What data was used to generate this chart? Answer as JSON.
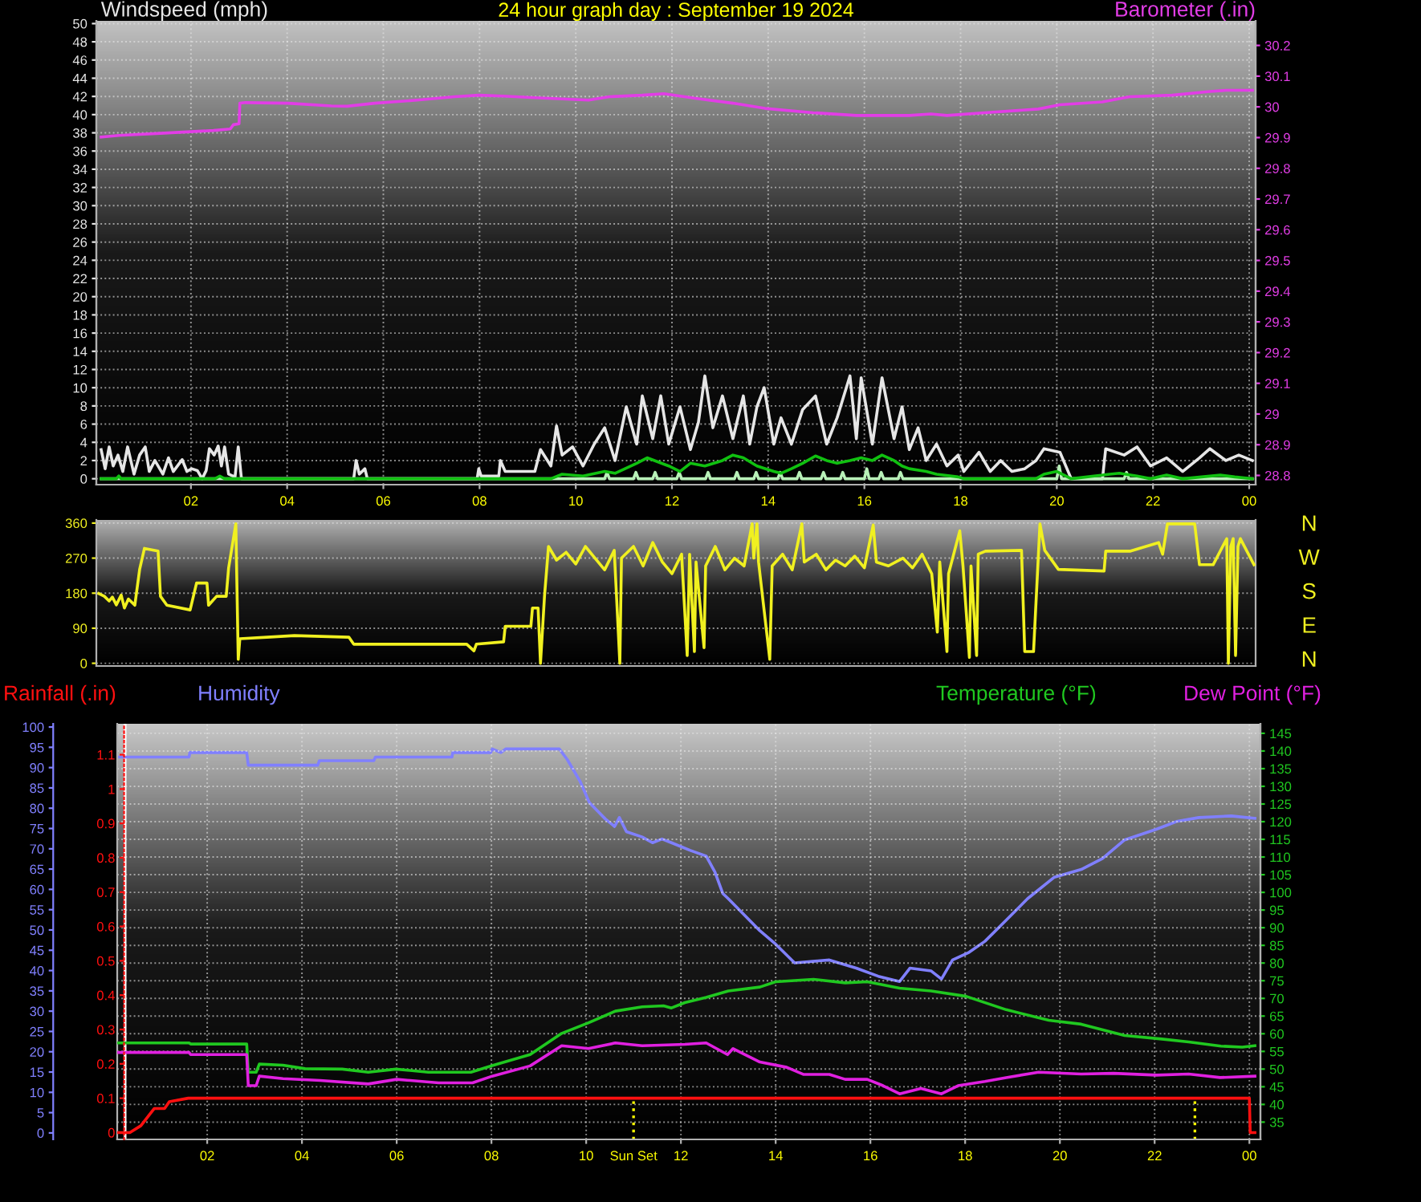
{
  "chart_data": [
    {
      "type": "line",
      "title": "24 hour graph day : September 19 2024",
      "ylabel": "Windspeed (mph)",
      "y2label": "Barometer (.in)",
      "xlim": [
        "2024-09-19T00:02",
        "2024-09-20T00:08"
      ],
      "xticks": [
        {
          "value": "2024-09-19T02:00",
          "label": "02"
        },
        {
          "value": "2024-09-19T04:00",
          "label": "04"
        },
        {
          "value": "2024-09-19T06:00",
          "label": "06"
        },
        {
          "value": "2024-09-19T08:00",
          "label": "08"
        },
        {
          "value": "2024-09-19T10:00",
          "label": "10"
        },
        {
          "value": "2024-09-19T12:00",
          "label": "12"
        },
        {
          "value": "2024-09-19T14:00",
          "label": "14"
        },
        {
          "value": "2024-09-19T16:00",
          "label": "16"
        },
        {
          "value": "2024-09-19T18:00",
          "label": "18"
        },
        {
          "value": "2024-09-19T20:00",
          "label": "20"
        },
        {
          "value": "2024-09-19T22:00",
          "label": "22"
        },
        {
          "value": "2024-09-20T00:00",
          "label": "00"
        }
      ],
      "ylim": [
        -0.65,
        50.3
      ],
      "yticks": [
        0,
        2,
        4,
        6,
        8,
        10,
        12,
        14,
        16,
        18,
        20,
        22,
        24,
        26,
        28,
        30,
        32,
        34,
        36,
        38,
        40,
        42,
        44,
        46,
        48,
        50
      ],
      "y2lim": [
        28.77,
        30.28
      ],
      "y2ticks": [
        28.8,
        28.9,
        29,
        29.1,
        29.2,
        29.3,
        29.4,
        29.5,
        29.6,
        29.7,
        29.8,
        29.9,
        30,
        30.1,
        30.2
      ],
      "grid": true,
      "series": [
        {
          "color": "#e6e6e6",
          "x": [
            "2024-09-19T00:08",
            "2024-09-19T00:13",
            "2024-09-19T00:18",
            "2024-09-19T00:23",
            "2024-09-19T00:29",
            "2024-09-19T00:35",
            "2024-09-19T00:41",
            "2024-09-19T00:49",
            "2024-09-19T00:56",
            "2024-09-19T01:03",
            "2024-09-19T01:08",
            "2024-09-19T01:15",
            "2024-09-19T01:25",
            "2024-09-19T01:32",
            "2024-09-19T01:38",
            "2024-09-19T01:49",
            "2024-09-19T01:55",
            "2024-09-19T02:01",
            "2024-09-19T02:08",
            "2024-09-19T02:14",
            "2024-09-19T02:19",
            "2024-09-19T02:23",
            "2024-09-19T02:29",
            "2024-09-19T02:34",
            "2024-09-19T02:38",
            "2024-09-19T02:42",
            "2024-09-19T02:47",
            "2024-09-19T02:55",
            "2024-09-19T02:59",
            "2024-09-19T03:03",
            "2024-09-19T05:23",
            "2024-09-19T05:26",
            "2024-09-19T05:30",
            "2024-09-19T05:37",
            "2024-09-19T05:40",
            "2024-09-19T07:57",
            "2024-09-19T07:59",
            "2024-09-19T08:02",
            "2024-09-19T08:24",
            "2024-09-19T08:26",
            "2024-09-19T08:32",
            "2024-09-19T09:09",
            "2024-09-19T09:16",
            "2024-09-19T09:29",
            "2024-09-19T09:36",
            "2024-09-19T09:43",
            "2024-09-19T09:56",
            "2024-09-19T10:09",
            "2024-09-19T10:23",
            "2024-09-19T10:36",
            "2024-09-19T10:49",
            "2024-09-19T11:03",
            "2024-09-19T11:16",
            "2024-09-19T11:23",
            "2024-09-19T11:36",
            "2024-09-19T11:46",
            "2024-09-19T11:56",
            "2024-09-19T12:10",
            "2024-09-19T12:23",
            "2024-09-19T12:33",
            "2024-09-19T12:41",
            "2024-09-19T12:51",
            "2024-09-19T13:03",
            "2024-09-19T13:16",
            "2024-09-19T13:29",
            "2024-09-19T13:37",
            "2024-09-19T13:46",
            "2024-09-19T13:55",
            "2024-09-19T14:07",
            "2024-09-19T14:16",
            "2024-09-19T14:29",
            "2024-09-19T14:43",
            "2024-09-19T14:59",
            "2024-09-19T15:13",
            "2024-09-19T15:26",
            "2024-09-19T15:42",
            "2024-09-19T15:50",
            "2024-09-19T15:56",
            "2024-09-19T16:10",
            "2024-09-19T16:22",
            "2024-09-19T16:37",
            "2024-09-19T16:47",
            "2024-09-19T16:56",
            "2024-09-19T17:07",
            "2024-09-19T17:17",
            "2024-09-19T17:30",
            "2024-09-19T17:43",
            "2024-09-19T17:57",
            "2024-09-19T18:04",
            "2024-09-19T18:23",
            "2024-09-19T18:37",
            "2024-09-19T18:50",
            "2024-09-19T19:04",
            "2024-09-19T19:20",
            "2024-09-19T19:34",
            "2024-09-19T19:44",
            "2024-09-19T20:04",
            "2024-09-19T20:18",
            "2024-09-19T20:57",
            "2024-09-19T21:01",
            "2024-09-19T21:24",
            "2024-09-19T21:40",
            "2024-09-19T21:57",
            "2024-09-19T22:17",
            "2024-09-19T22:37",
            "2024-09-19T22:58",
            "2024-09-19T23:11",
            "2024-09-19T23:31",
            "2024-09-19T23:47",
            "2024-09-20T00:04"
          ],
          "values": [
            3.2,
            1.1,
            3.5,
            1.4,
            2.6,
            0.8,
            3.5,
            0.5,
            2.6,
            3.5,
            0.8,
            2.0,
            0.5,
            2.3,
            0.8,
            2.1,
            0.8,
            1.1,
            0.9,
            0,
            0.9,
            3.3,
            2.6,
            3.6,
            1.4,
            3.5,
            0.5,
            0.2,
            3.5,
            0,
            0,
            2.0,
            0.5,
            1.1,
            0,
            0,
            1.1,
            0.3,
            0.3,
            2.0,
            0.8,
            0.8,
            3.2,
            1.4,
            5.8,
            2.6,
            3.5,
            1.4,
            3.8,
            5.6,
            2.0,
            7.9,
            3.8,
            9.1,
            4.4,
            9.1,
            3.8,
            7.9,
            3.2,
            6.2,
            11.3,
            5.6,
            9.1,
            4.4,
            9.1,
            3.8,
            7.9,
            10.0,
            3.8,
            6.7,
            3.8,
            7.6,
            9.1,
            3.8,
            6.7,
            11.3,
            4.4,
            11.1,
            3.8,
            11.1,
            4.4,
            7.9,
            3.2,
            5.6,
            2.0,
            3.8,
            1.4,
            2.6,
            0.8,
            2.9,
            0.8,
            2.0,
            0.8,
            1.1,
            2.0,
            3.3,
            2.9,
            0,
            0,
            3.3,
            2.6,
            3.5,
            1.4,
            2.3,
            0.8,
            2.3,
            3.3,
            2.0,
            2.6,
            2.0
          ]
        },
        {
          "color": "#b8f0b8",
          "x": [
            "2024-09-19T00:08",
            "2024-09-19T10:36",
            "2024-09-19T10:39",
            "2024-09-19T10:42",
            "2024-09-19T11:12",
            "2024-09-19T11:15",
            "2024-09-19T11:18",
            "2024-09-19T11:36",
            "2024-09-19T11:39",
            "2024-09-19T11:42",
            "2024-09-19T12:06",
            "2024-09-19T12:09",
            "2024-09-19T12:12",
            "2024-09-19T12:42",
            "2024-09-19T12:45",
            "2024-09-19T12:48",
            "2024-09-19T13:18",
            "2024-09-19T13:21",
            "2024-09-19T13:24",
            "2024-09-19T13:42",
            "2024-09-19T13:45",
            "2024-09-19T13:48",
            "2024-09-19T14:12",
            "2024-09-19T14:15",
            "2024-09-19T14:18",
            "2024-09-19T14:36",
            "2024-09-19T14:39",
            "2024-09-19T14:42",
            "2024-09-19T15:06",
            "2024-09-19T15:09",
            "2024-09-19T15:12",
            "2024-09-19T15:30",
            "2024-09-19T15:33",
            "2024-09-19T15:36",
            "2024-09-19T16:00",
            "2024-09-19T16:03",
            "2024-09-19T16:06",
            "2024-09-19T16:18",
            "2024-09-19T16:21",
            "2024-09-19T16:24",
            "2024-09-19T16:42",
            "2024-09-19T16:45",
            "2024-09-19T16:48",
            "2024-09-19T20:00",
            "2024-09-19T20:03",
            "2024-09-19T20:06",
            "2024-09-19T21:24",
            "2024-09-19T21:27",
            "2024-09-19T21:30",
            "2024-09-20T00:04"
          ],
          "values": [
            0,
            0,
            0.7,
            0,
            0,
            0.7,
            0,
            0,
            0.7,
            0,
            0,
            0.7,
            0,
            0,
            0.7,
            0,
            0,
            0.7,
            0,
            0,
            0.7,
            0,
            0,
            0.7,
            0,
            0,
            0.7,
            0,
            0,
            0.7,
            0,
            0,
            0.7,
            0,
            0,
            1.1,
            0,
            0,
            0.7,
            0,
            0,
            0.7,
            0,
            0,
            1.4,
            0,
            0,
            0.7,
            0,
            0
          ]
        },
        {
          "color": "#10c010",
          "x": [
            "2024-09-19T00:08",
            "2024-09-19T00:27",
            "2024-09-19T00:30",
            "2024-09-19T00:33",
            "2024-09-19T02:30",
            "2024-09-19T02:36",
            "2024-09-19T02:42",
            "2024-09-19T09:29",
            "2024-09-19T09:43",
            "2024-09-19T10:09",
            "2024-09-19T10:36",
            "2024-09-19T10:49",
            "2024-09-19T11:16",
            "2024-09-19T11:29",
            "2024-09-19T11:56",
            "2024-09-19T12:10",
            "2024-09-19T12:23",
            "2024-09-19T12:41",
            "2024-09-19T13:03",
            "2024-09-19T13:16",
            "2024-09-19T13:29",
            "2024-09-19T13:46",
            "2024-09-19T14:07",
            "2024-09-19T14:16",
            "2024-09-19T14:29",
            "2024-09-19T14:43",
            "2024-09-19T14:59",
            "2024-09-19T15:13",
            "2024-09-19T15:26",
            "2024-09-19T15:42",
            "2024-09-19T15:56",
            "2024-09-19T16:10",
            "2024-09-19T16:22",
            "2024-09-19T16:37",
            "2024-09-19T16:47",
            "2024-09-19T16:56",
            "2024-09-19T17:17",
            "2024-09-19T17:30",
            "2024-09-19T17:57",
            "2024-09-19T18:04",
            "2024-09-19T19:34",
            "2024-09-19T19:44",
            "2024-09-19T20:00",
            "2024-09-19T20:18",
            "2024-09-19T21:06",
            "2024-09-19T21:18",
            "2024-09-19T21:40",
            "2024-09-19T21:57",
            "2024-09-19T22:17",
            "2024-09-19T22:37",
            "2024-09-19T23:24",
            "2024-09-19T23:42",
            "2024-09-20T00:04"
          ],
          "values": [
            0,
            0,
            0.3,
            0,
            0,
            0.3,
            0,
            0,
            0.5,
            0.3,
            0.8,
            0.6,
            1.7,
            2.3,
            1.4,
            0.8,
            1.7,
            1.4,
            2.0,
            2.6,
            2.3,
            1.4,
            0.8,
            0.6,
            1.1,
            1.7,
            2.5,
            2.0,
            1.7,
            2.0,
            2.3,
            2.0,
            2.6,
            2.0,
            1.4,
            1.1,
            0.8,
            0.5,
            0.2,
            0,
            0,
            0.5,
            0.8,
            0,
            0.5,
            0.6,
            0.3,
            0,
            0.4,
            0,
            0.4,
            0.2,
            0
          ]
        },
        {
          "color": "#e23de6",
          "axis": "y2",
          "x": [
            "2024-09-19T00:08",
            "2024-09-19T00:30",
            "2024-09-19T01:22",
            "2024-09-19T02:28",
            "2024-09-19T02:49",
            "2024-09-19T02:53",
            "2024-09-19T03:00",
            "2024-09-19T03:01",
            "2024-09-19T03:08",
            "2024-09-19T04:01",
            "2024-09-19T04:55",
            "2024-09-19T05:15",
            "2024-09-19T05:49",
            "2024-09-19T06:42",
            "2024-09-19T07:29",
            "2024-09-19T07:59",
            "2024-09-19T08:30",
            "2024-09-19T09:09",
            "2024-09-19T10:16",
            "2024-09-19T10:42",
            "2024-09-19T11:23",
            "2024-09-19T11:50",
            "2024-09-19T12:29",
            "2024-09-19T13:16",
            "2024-09-19T13:56",
            "2024-09-19T14:56",
            "2024-09-19T15:50",
            "2024-09-19T16:56",
            "2024-09-19T17:23",
            "2024-09-19T17:43",
            "2024-09-19T18:30",
            "2024-09-19T19:37",
            "2024-09-19T20:04",
            "2024-09-19T20:57",
            "2024-09-19T21:31",
            "2024-09-19T22:24",
            "2024-09-19T23:11",
            "2024-09-19T23:31",
            "2024-09-20T00:04"
          ],
          "values": [
            29.902,
            29.907,
            29.914,
            29.923,
            29.928,
            29.942,
            29.945,
            30.012,
            30.014,
            30.012,
            30.003,
            30.002,
            30.012,
            30.022,
            30.033,
            30.038,
            30.035,
            30.03,
            30.022,
            30.033,
            30.038,
            30.043,
            30.028,
            30.012,
            29.995,
            29.981,
            29.972,
            29.972,
            29.977,
            29.972,
            29.981,
            29.993,
            30.007,
            30.016,
            30.033,
            30.038,
            30.05,
            30.054,
            30.054
          ]
        }
      ]
    },
    {
      "type": "line",
      "xlim": [
        "2024-09-19T00:02",
        "2024-09-20T00:08"
      ],
      "ylim": [
        -7,
        368
      ],
      "yticks": [
        0,
        90,
        180,
        270,
        360
      ],
      "tick_labels": "y",
      "grid": "y",
      "annotations": [
        "N",
        "W",
        "S",
        "E",
        "N"
      ],
      "series": [
        {
          "color": "#f0f020",
          "x": [
            "2024-09-19T00:05",
            "2024-09-19T00:12",
            "2024-09-19T00:18",
            "2024-09-19T00:22",
            "2024-09-19T00:27",
            "2024-09-19T00:33",
            "2024-09-19T00:37",
            "2024-09-19T00:42",
            "2024-09-19T00:50",
            "2024-09-19T00:56",
            "2024-09-19T01:02",
            "2024-09-19T01:19",
            "2024-09-19T01:22",
            "2024-09-19T01:30",
            "2024-09-19T01:59",
            "2024-09-19T02:07",
            "2024-09-19T02:20",
            "2024-09-19T02:22",
            "2024-09-19T02:32",
            "2024-09-19T02:44",
            "2024-09-19T02:47",
            "2024-09-19T02:56",
            "2024-09-19T02:59",
            "2024-09-19T03:01",
            "2024-09-19T03:35",
            "2024-09-19T04:09",
            "2024-09-19T05:17",
            "2024-09-19T05:23",
            "2024-09-19T07:44",
            "2024-09-19T07:53",
            "2024-09-19T07:56",
            "2024-09-19T08:30",
            "2024-09-19T08:32",
            "2024-09-19T09:04",
            "2024-09-19T09:06",
            "2024-09-19T09:13",
            "2024-09-19T09:16",
            "2024-09-19T09:21",
            "2024-09-19T09:26",
            "2024-09-19T09:36",
            "2024-09-19T09:48",
            "2024-09-19T10:00",
            "2024-09-19T10:12",
            "2024-09-19T10:24",
            "2024-09-19T10:36",
            "2024-09-19T10:48",
            "2024-09-19T10:55",
            "2024-09-19T10:57",
            "2024-09-19T11:12",
            "2024-09-19T11:24",
            "2024-09-19T11:36",
            "2024-09-19T11:48",
            "2024-09-19T12:00",
            "2024-09-19T12:12",
            "2024-09-19T12:19",
            "2024-09-19T12:22",
            "2024-09-19T12:28",
            "2024-09-19T12:30",
            "2024-09-19T12:40",
            "2024-09-19T12:42",
            "2024-09-19T12:54",
            "2024-09-19T13:06",
            "2024-09-19T13:18",
            "2024-09-19T13:30",
            "2024-09-19T13:40",
            "2024-09-19T13:42",
            "2024-09-19T13:46",
            "2024-09-19T13:48",
            "2024-09-19T14:02",
            "2024-09-19T14:05",
            "2024-09-19T14:18",
            "2024-09-19T14:30",
            "2024-09-19T14:42",
            "2024-09-19T14:45",
            "2024-09-19T15:00",
            "2024-09-19T15:12",
            "2024-09-19T15:24",
            "2024-09-19T15:36",
            "2024-09-19T15:48",
            "2024-09-19T16:00",
            "2024-09-19T16:11",
            "2024-09-19T16:15",
            "2024-09-19T16:30",
            "2024-09-19T16:48",
            "2024-09-19T17:00",
            "2024-09-19T17:12",
            "2024-09-19T17:24",
            "2024-09-19T17:31",
            "2024-09-19T17:34",
            "2024-09-19T17:43",
            "2024-09-19T17:45",
            "2024-09-19T17:59",
            "2024-09-19T18:03",
            "2024-09-19T18:11",
            "2024-09-19T18:13",
            "2024-09-19T18:20",
            "2024-09-19T18:22",
            "2024-09-19T18:31",
            "2024-09-19T19:16",
            "2024-09-19T19:20",
            "2024-09-19T19:31",
            "2024-09-19T19:39",
            "2024-09-19T19:45",
            "2024-09-19T20:02",
            "2024-09-19T20:59",
            "2024-09-19T21:01",
            "2024-09-19T21:32",
            "2024-09-19T22:07",
            "2024-09-19T22:12",
            "2024-09-19T22:18",
            "2024-09-19T22:52",
            "2024-09-19T22:58",
            "2024-09-19T23:15",
            "2024-09-19T23:32",
            "2024-09-19T23:34",
            "2024-09-19T23:37",
            "2024-09-19T23:40",
            "2024-09-19T23:43",
            "2024-09-19T23:46",
            "2024-09-19T23:49",
            "2024-09-20T00:06"
          ],
          "values": [
            179,
            172,
            160,
            170,
            150,
            175,
            142,
            165,
            149,
            241,
            295,
            288,
            172,
            149,
            137,
            206,
            206,
            149,
            172,
            172,
            245,
            358,
            10,
            63,
            67,
            71,
            67,
            49,
            49,
            32,
            49,
            55,
            95,
            95,
            142,
            142,
            0,
            172,
            300,
            265,
            285,
            255,
            300,
            270,
            240,
            290,
            0,
            270,
            300,
            250,
            310,
            260,
            230,
            280,
            20,
            280,
            30,
            260,
            40,
            250,
            300,
            240,
            270,
            250,
            358,
            270,
            358,
            260,
            10,
            250,
            280,
            240,
            358,
            260,
            280,
            240,
            265,
            250,
            275,
            245,
            355,
            260,
            250,
            270,
            245,
            280,
            230,
            80,
            260,
            30,
            230,
            340,
            250,
            15,
            250,
            20,
            280,
            288,
            290,
            30,
            30,
            358,
            290,
            241,
            237,
            288,
            288,
            310,
            280,
            358,
            358,
            253,
            253,
            320,
            0,
            300,
            320,
            20,
            300,
            320,
            253
          ]
        }
      ]
    },
    {
      "type": "line",
      "xlim": [
        "2024-09-19T00:06",
        "2024-09-20T00:14"
      ],
      "xticks": [
        {
          "value": "2024-09-19T02:00",
          "label": "02"
        },
        {
          "value": "2024-09-19T04:00",
          "label": "04"
        },
        {
          "value": "2024-09-19T06:00",
          "label": "06"
        },
        {
          "value": "2024-09-19T08:00",
          "label": "08"
        },
        {
          "value": "2024-09-19T10:00",
          "label": "10"
        },
        {
          "value": "2024-09-19T12:00",
          "label": "12"
        },
        {
          "value": "2024-09-19T14:00",
          "label": "14"
        },
        {
          "value": "2024-09-19T16:00",
          "label": "16"
        },
        {
          "value": "2024-09-19T18:00",
          "label": "18"
        },
        {
          "value": "2024-09-19T20:00",
          "label": "20"
        },
        {
          "value": "2024-09-19T22:00",
          "label": "22"
        },
        {
          "value": "2024-09-20T00:00",
          "label": "00"
        }
      ],
      "ylim": [
        -1.6,
        100.8
      ],
      "yticks": [
        0,
        5,
        10,
        15,
        20,
        25,
        30,
        35,
        40,
        45,
        50,
        55,
        60,
        65,
        70,
        75,
        80,
        85,
        90,
        95,
        100
      ],
      "y2lim": [
        30.1,
        147.7
      ],
      "y2ticks": [
        35,
        40,
        45,
        50,
        55,
        60,
        65,
        70,
        75,
        80,
        85,
        90,
        95,
        100,
        105,
        110,
        115,
        120,
        125,
        130,
        135,
        140,
        145
      ],
      "y3lim": [
        -0.02,
        1.19
      ],
      "y3ticks": [
        0,
        0.1,
        0.2,
        0.3,
        0.4,
        0.5,
        0.6,
        0.7,
        0.8,
        0.9,
        1,
        1.1
      ],
      "grid": true,
      "legend": "top",
      "ref_lines": [
        {
          "axis": "x",
          "value": "2024-09-19T00:16",
          "color": "#ffffff",
          "line_style": "solid"
        },
        {
          "axis": "x",
          "value": "2024-09-19T11:00",
          "label": "Sun Set",
          "color": "#ffff00",
          "line_style": "dotted"
        },
        {
          "axis": "x",
          "value": "2024-09-19T22:51",
          "color": "#ffff00",
          "line_style": "dotted"
        }
      ],
      "series": [
        {
          "name": "Rainfall (.in)",
          "color": "#ff1010",
          "axis": "y3",
          "x": [
            "2024-09-19T00:07",
            "2024-09-19T00:22",
            "2024-09-19T00:36",
            "2024-09-19T00:53",
            "2024-09-19T01:06",
            "2024-09-19T01:12",
            "2024-09-19T01:36",
            "2024-09-20T00:00",
            "2024-09-20T00:01",
            "2024-09-20T00:07"
          ],
          "values": [
            0,
            0,
            0.02,
            0.07,
            0.07,
            0.09,
            0.1,
            0.1,
            0,
            0
          ]
        },
        {
          "name": "Humidity",
          "color": "#8080ff",
          "x": [
            "2024-09-19T00:07",
            "2024-09-19T01:37",
            "2024-09-19T01:38",
            "2024-09-19T02:50",
            "2024-09-19T02:52",
            "2024-09-19T04:20",
            "2024-09-19T04:22",
            "2024-09-19T05:31",
            "2024-09-19T05:33",
            "2024-09-19T07:10",
            "2024-09-19T07:11",
            "2024-09-19T07:59",
            "2024-09-19T08:01",
            "2024-09-19T08:12",
            "2024-09-19T08:18",
            "2024-09-19T09:26",
            "2024-09-19T09:36",
            "2024-09-19T09:52",
            "2024-09-19T10:04",
            "2024-09-19T10:24",
            "2024-09-19T10:36",
            "2024-09-19T10:42",
            "2024-09-19T10:51",
            "2024-09-19T11:11",
            "2024-09-19T11:24",
            "2024-09-19T11:36",
            "2024-09-19T11:48",
            "2024-09-19T12:12",
            "2024-09-19T12:32",
            "2024-09-19T12:43",
            "2024-09-19T12:53",
            "2024-09-19T13:00",
            "2024-09-19T13:40",
            "2024-09-19T14:00",
            "2024-09-19T14:24",
            "2024-09-19T15:08",
            "2024-09-19T15:42",
            "2024-09-19T16:10",
            "2024-09-19T16:37",
            "2024-09-19T16:50",
            "2024-09-19T17:17",
            "2024-09-19T17:30",
            "2024-09-19T17:44",
            "2024-09-19T18:05",
            "2024-09-19T18:25",
            "2024-09-19T18:52",
            "2024-09-19T19:19",
            "2024-09-19T19:53",
            "2024-09-19T20:27",
            "2024-09-19T20:54",
            "2024-09-19T21:22",
            "2024-09-19T22:02",
            "2024-09-19T22:29",
            "2024-09-19T22:56",
            "2024-09-19T23:37",
            "2024-09-20T00:07"
          ],
          "values": [
            92.6,
            92.6,
            93.7,
            93.7,
            90.6,
            90.6,
            91.7,
            91.7,
            92.6,
            92.6,
            93.7,
            93.7,
            94.6,
            93.7,
            94.6,
            94.6,
            92.0,
            86.7,
            81.4,
            77.4,
            75.5,
            77.7,
            74.2,
            72.9,
            71.5,
            72.4,
            71.5,
            69.6,
            68.2,
            64.3,
            59.0,
            57.7,
            49.8,
            46.5,
            41.9,
            42.6,
            40.6,
            38.6,
            37.3,
            40.6,
            39.9,
            37.9,
            42.6,
            44.5,
            47.2,
            52.4,
            57.7,
            63.0,
            64.9,
            67.6,
            72.2,
            74.8,
            76.8,
            77.7,
            78.1,
            77.5
          ]
        },
        {
          "name": "Temperature (°F)",
          "color": "#20c820",
          "axis": "y2",
          "x": [
            "2024-09-19T00:07",
            "2024-09-19T01:37",
            "2024-09-19T01:39",
            "2024-09-19T02:50",
            "2024-09-19T02:52",
            "2024-09-19T03:02",
            "2024-09-19T03:06",
            "2024-09-19T03:36",
            "2024-09-19T04:04",
            "2024-09-19T04:51",
            "2024-09-19T05:24",
            "2024-09-19T05:59",
            "2024-09-19T06:40",
            "2024-09-19T07:34",
            "2024-09-19T08:01",
            "2024-09-19T08:49",
            "2024-09-19T09:29",
            "2024-09-19T10:03",
            "2024-09-19T10:37",
            "2024-09-19T11:11",
            "2024-09-19T11:38",
            "2024-09-19T11:48",
            "2024-09-19T12:05",
            "2024-09-19T12:32",
            "2024-09-19T13:00",
            "2024-09-19T13:40",
            "2024-09-19T14:00",
            "2024-09-19T14:48",
            "2024-09-19T15:28",
            "2024-09-19T15:56",
            "2024-09-19T16:37",
            "2024-09-19T17:17",
            "2024-09-19T18:01",
            "2024-09-19T18:52",
            "2024-09-19T19:46",
            "2024-09-19T20:27",
            "2024-09-19T21:22",
            "2024-09-19T22:09",
            "2024-09-19T22:43",
            "2024-09-19T23:24",
            "2024-09-19T23:51",
            "2024-09-20T00:07"
          ],
          "values": [
            57.4,
            57.4,
            57.1,
            57.1,
            49.1,
            49.1,
            51.4,
            51.1,
            50.1,
            50.0,
            49.1,
            50.0,
            49.1,
            49.1,
            51.0,
            54.1,
            60.1,
            63.1,
            66.4,
            67.6,
            67.9,
            67.3,
            68.8,
            70.3,
            72.1,
            73.2,
            74.7,
            75.4,
            74.4,
            74.7,
            72.9,
            72.1,
            70.6,
            66.8,
            63.8,
            62.7,
            59.5,
            58.5,
            57.7,
            56.5,
            56.2,
            56.6
          ]
        },
        {
          "name": "Dew Point (°F)",
          "color": "#e020e0",
          "axis": "y2",
          "x": [
            "2024-09-19T00:07",
            "2024-09-19T01:37",
            "2024-09-19T01:39",
            "2024-09-19T02:50",
            "2024-09-19T02:52",
            "2024-09-19T03:02",
            "2024-09-19T03:06",
            "2024-09-19T03:36",
            "2024-09-19T04:23",
            "2024-09-19T05:24",
            "2024-09-19T06:00",
            "2024-09-19T06:53",
            "2024-09-19T07:36",
            "2024-09-19T08:01",
            "2024-09-19T08:49",
            "2024-09-19T09:29",
            "2024-09-19T10:03",
            "2024-09-19T10:37",
            "2024-09-19T11:11",
            "2024-09-19T12:05",
            "2024-09-19T12:32",
            "2024-09-19T12:59",
            "2024-09-19T13:06",
            "2024-09-19T13:40",
            "2024-09-19T14:14",
            "2024-09-19T14:35",
            "2024-09-19T15:08",
            "2024-09-19T15:28",
            "2024-09-19T15:56",
            "2024-09-19T16:16",
            "2024-09-19T16:37",
            "2024-09-19T17:04",
            "2024-09-19T17:30",
            "2024-09-19T17:51",
            "2024-09-19T18:25",
            "2024-09-19T18:52",
            "2024-09-19T19:33",
            "2024-09-19T20:27",
            "2024-09-19T21:08",
            "2024-09-19T22:02",
            "2024-09-19T22:43",
            "2024-09-19T23:23",
            "2024-09-20T00:07"
          ],
          "values": [
            54.7,
            54.7,
            54.1,
            54.1,
            45.3,
            45.3,
            48.0,
            47.3,
            46.8,
            45.8,
            47.1,
            46.1,
            46.1,
            48.0,
            50.9,
            56.6,
            55.8,
            57.4,
            56.6,
            57.0,
            57.4,
            54.1,
            55.8,
            52.0,
            50.5,
            48.5,
            48.5,
            47.1,
            47.1,
            45.3,
            43.0,
            44.5,
            43.0,
            45.3,
            46.5,
            47.6,
            49.1,
            48.6,
            48.8,
            48.3,
            48.6,
            47.6,
            48.0
          ]
        }
      ]
    }
  ]
}
